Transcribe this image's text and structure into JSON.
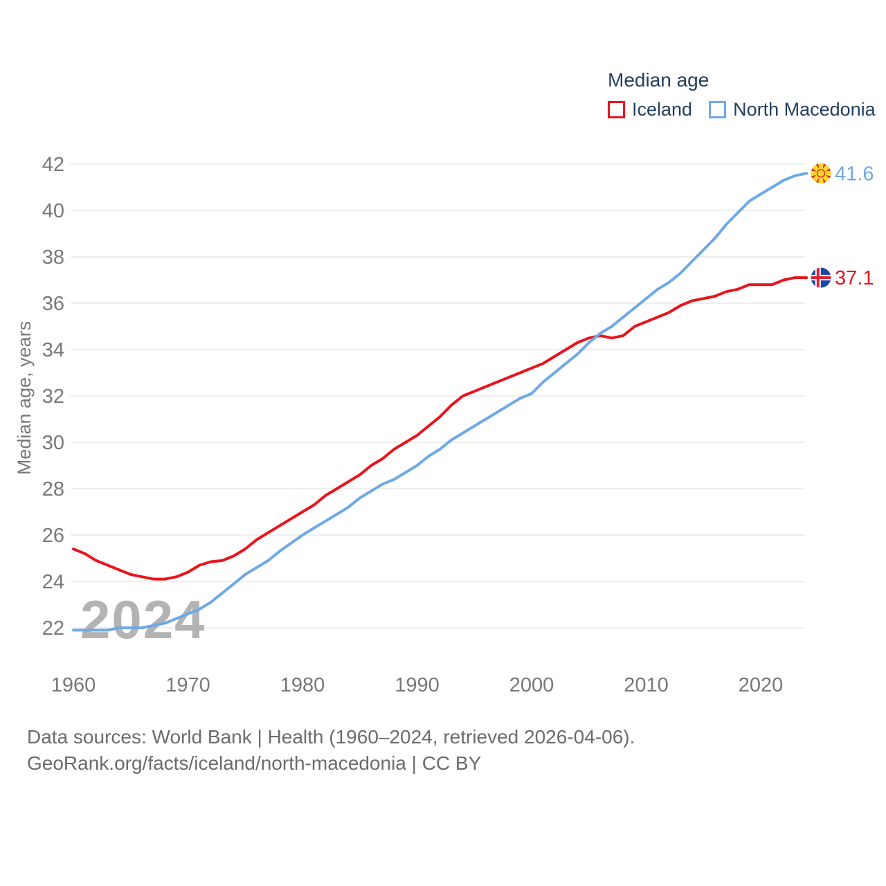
{
  "legend": {
    "title": "Median age",
    "items": [
      {
        "label": "Iceland",
        "color": "#e8141c"
      },
      {
        "label": "North Macedonia",
        "color": "#6ea9e6"
      }
    ]
  },
  "watermark": "2024",
  "footer": {
    "line1": "Data sources: World Bank | Health (1960–2024, retrieved 2026-04-06).",
    "line2": "GeoRank.org/facts/iceland/north-macedonia | CC BY"
  },
  "chart_data": {
    "type": "line",
    "title": "Median age",
    "xlabel": "",
    "ylabel": "Median age, years",
    "xlim": [
      1960,
      2024
    ],
    "ylim": [
      21,
      43
    ],
    "grid": "horizontal",
    "legend_position": "top-right",
    "x_ticks": [
      1960,
      1970,
      1980,
      1990,
      2000,
      2010,
      2020
    ],
    "y_ticks": [
      22,
      24,
      26,
      28,
      30,
      32,
      34,
      36,
      38,
      40,
      42
    ],
    "years": [
      1960,
      1961,
      1962,
      1963,
      1964,
      1965,
      1966,
      1967,
      1968,
      1969,
      1970,
      1971,
      1972,
      1973,
      1974,
      1975,
      1976,
      1977,
      1978,
      1979,
      1980,
      1981,
      1982,
      1983,
      1984,
      1985,
      1986,
      1987,
      1988,
      1989,
      1990,
      1991,
      1992,
      1993,
      1994,
      1995,
      1996,
      1997,
      1998,
      1999,
      2000,
      2001,
      2002,
      2003,
      2004,
      2005,
      2006,
      2007,
      2008,
      2009,
      2010,
      2011,
      2012,
      2013,
      2014,
      2015,
      2016,
      2017,
      2018,
      2019,
      2020,
      2021,
      2022,
      2023,
      2024
    ],
    "series": [
      {
        "name": "Iceland",
        "color": "#e8141c",
        "flag": "iceland",
        "end_label": "37.1",
        "end_value": 37.1,
        "values": [
          25.4,
          25.2,
          24.9,
          24.7,
          24.5,
          24.3,
          24.2,
          24.1,
          24.1,
          24.2,
          24.4,
          24.7,
          24.85,
          24.9,
          25.1,
          25.4,
          25.8,
          26.1,
          26.4,
          26.7,
          27.0,
          27.3,
          27.7,
          28.0,
          28.3,
          28.6,
          29.0,
          29.3,
          29.7,
          30.0,
          30.3,
          30.7,
          31.1,
          31.6,
          32.0,
          32.2,
          32.4,
          32.6,
          32.8,
          33.0,
          33.2,
          33.4,
          33.7,
          34.0,
          34.3,
          34.5,
          34.6,
          34.5,
          34.6,
          35.0,
          35.2,
          35.4,
          35.6,
          35.9,
          36.1,
          36.2,
          36.3,
          36.5,
          36.6,
          36.8,
          36.8,
          36.8,
          37.0,
          37.1,
          37.1
        ]
      },
      {
        "name": "North Macedonia",
        "color": "#6ea9e6",
        "flag": "north-macedonia",
        "end_label": "41.6",
        "end_value": 41.6,
        "values": [
          21.9,
          21.9,
          21.9,
          21.9,
          22.0,
          22.0,
          22.0,
          22.1,
          22.2,
          22.4,
          22.6,
          22.8,
          23.1,
          23.5,
          23.9,
          24.3,
          24.6,
          24.9,
          25.3,
          25.65,
          26.0,
          26.3,
          26.6,
          26.9,
          27.2,
          27.6,
          27.9,
          28.2,
          28.4,
          28.7,
          29.0,
          29.4,
          29.7,
          30.1,
          30.4,
          30.7,
          31.0,
          31.3,
          31.6,
          31.9,
          32.1,
          32.6,
          33.0,
          33.4,
          33.8,
          34.3,
          34.7,
          35.0,
          35.4,
          35.8,
          36.2,
          36.6,
          36.9,
          37.3,
          37.8,
          38.3,
          38.8,
          39.4,
          39.9,
          40.4,
          40.7,
          41.0,
          41.3,
          41.5,
          41.6
        ]
      }
    ]
  }
}
